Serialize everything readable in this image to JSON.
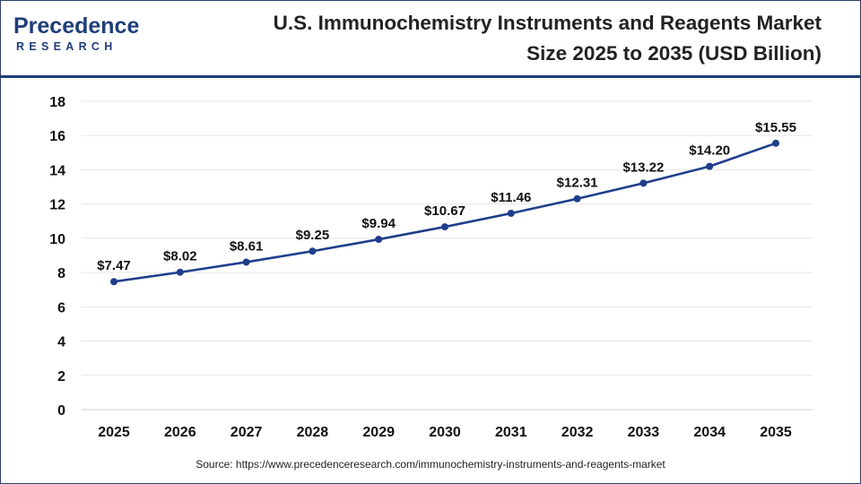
{
  "header": {
    "logo_word": "Precedence",
    "logo_sub": "RESEARCH",
    "title_line1": "U.S. Immunochemistry Instruments and Reagents Market",
    "title_line2": "Size 2025 to 2035 (USD Billion)"
  },
  "source": "Source: https://www.precedenceresearch.com/immunochemistry-instruments-and-reagents-market",
  "colors": {
    "line": "#1f3e8c",
    "marker": "#1f3e8c",
    "accent": "#1f3e78",
    "grid": "#e6e6e6"
  },
  "chart_data": {
    "type": "line",
    "x": [
      "2025",
      "2026",
      "2027",
      "2028",
      "2029",
      "2030",
      "2031",
      "2032",
      "2033",
      "2034",
      "2035"
    ],
    "series": [
      {
        "values": [
          7.47,
          8.02,
          8.61,
          9.25,
          9.94,
          10.67,
          11.46,
          12.31,
          13.22,
          14.2,
          15.55
        ],
        "labels": [
          "$7.47",
          "$8.02",
          "$8.61",
          "$9.25",
          "$9.94",
          "$10.67",
          "$11.46",
          "$12.31",
          "$13.22",
          "$14.20",
          "$15.55"
        ]
      }
    ],
    "ylim": [
      0,
      18
    ],
    "yticks": [
      "0",
      "2",
      "4",
      "6",
      "8",
      "10",
      "12",
      "14",
      "16",
      "18"
    ],
    "xlabel": "",
    "ylabel": "",
    "grid": true,
    "legend": "none"
  }
}
